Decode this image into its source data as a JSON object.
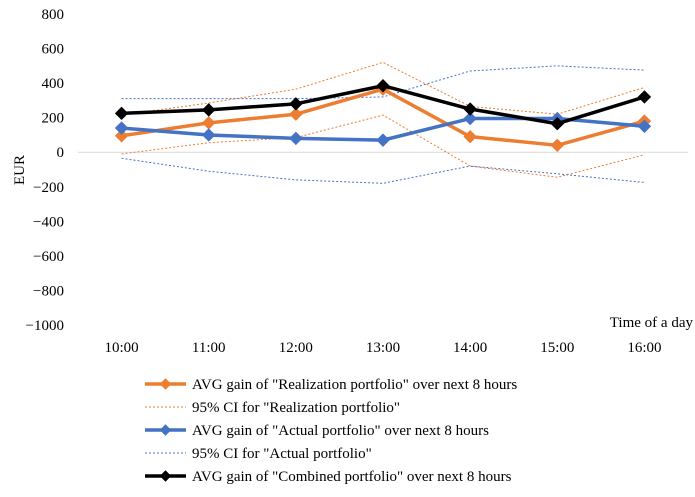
{
  "chart_data": {
    "type": "line",
    "title": "",
    "ylabel": "EUR",
    "xlabel": "Time of a day",
    "ylim": [
      -1000,
      800
    ],
    "ytick_step": 200,
    "y_ticks": [
      "800",
      "600",
      "400",
      "200",
      "0",
      "−200",
      "−400",
      "−600",
      "−800",
      "−1000"
    ],
    "categories": [
      "10:00",
      "11:00",
      "12:00",
      "13:00",
      "14:00",
      "15:00",
      "16:00"
    ],
    "grid": false,
    "legend_position": "bottom",
    "series": [
      {
        "name": "AVG gain of \"Realization portfolio\" over next 8 hours",
        "color": "#ED7D31",
        "style": "solid-marker",
        "values": [
          95,
          170,
          220,
          365,
          90,
          40,
          180
        ]
      },
      {
        "name": "95% CI for \"Realization portfolio\"",
        "color": "#ED7D31",
        "style": "dotted",
        "upper": [
          215,
          285,
          365,
          520,
          265,
          220,
          375
        ],
        "lower": [
          -10,
          55,
          85,
          215,
          -80,
          -145,
          -15
        ]
      },
      {
        "name": "AVG gain of \"Actual portfolio\" over next 8 hours",
        "color": "#4472C4",
        "style": "solid-marker",
        "values": [
          140,
          100,
          80,
          70,
          195,
          195,
          150
        ]
      },
      {
        "name": "95% CI for \"Actual portfolio\"",
        "color": "#4472C4",
        "style": "dotted",
        "upper": [
          310,
          310,
          310,
          320,
          470,
          500,
          475
        ],
        "lower": [
          -35,
          -110,
          -160,
          -180,
          -80,
          -125,
          -175
        ]
      },
      {
        "name": "AVG gain of \"Combined portfolio\" over next 8 hours",
        "color": "#000000",
        "style": "solid-marker",
        "values": [
          225,
          245,
          280,
          385,
          250,
          165,
          320
        ]
      }
    ]
  }
}
